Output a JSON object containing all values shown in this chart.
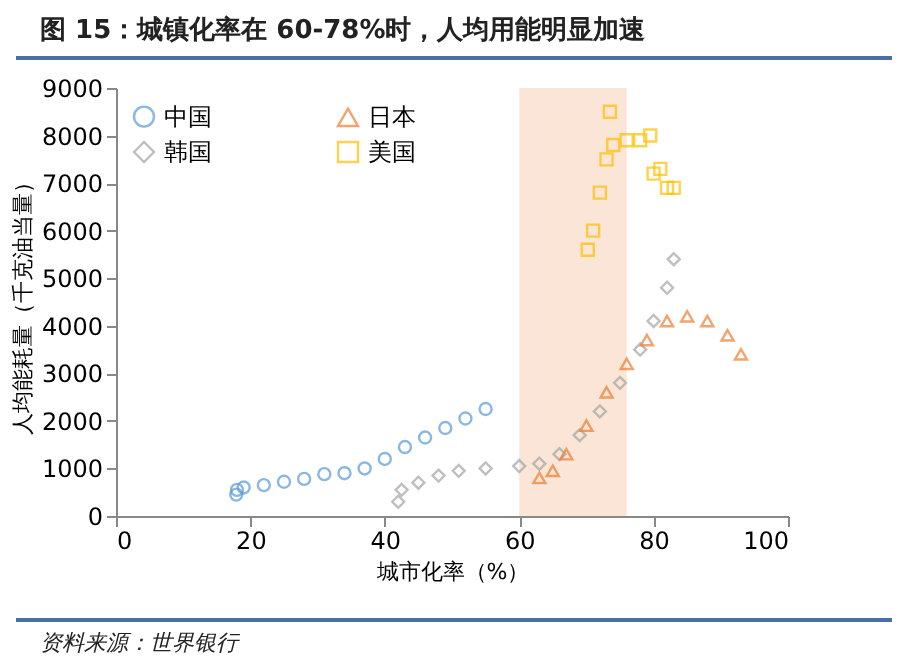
{
  "chart_data": {
    "type": "scatter",
    "title": "图 15：城镇化率在 60-78%时，人均用能明显加速",
    "xlabel": "城市化率（%）",
    "ylabel": "人均能耗量（千克油当量）",
    "annotations": [
      "资料来源：世界银行"
    ],
    "xlim": [
      0,
      100
    ],
    "xticks": [
      0,
      20,
      40,
      60,
      80,
      100
    ],
    "ylim": [
      0,
      9000
    ],
    "yticks": [
      0,
      1000,
      2000,
      3000,
      4000,
      5000,
      6000,
      7000,
      8000,
      9000
    ],
    "grid": false,
    "legend": "top left",
    "bands": [
      {
        "axis": "x",
        "from": 60,
        "to": 76,
        "color": "#fbe5d6"
      }
    ],
    "series": [
      {
        "name": "中国",
        "color": "#5b9bd5",
        "marker": "circle",
        "x": [
          17.9,
          18,
          19,
          22,
          25,
          28,
          31,
          34,
          37,
          40,
          43,
          46,
          49,
          52,
          55
        ],
        "values": [
          450,
          550,
          600,
          650,
          720,
          780,
          880,
          900,
          1000,
          1200,
          1450,
          1650,
          1850,
          2050,
          2250
        ]
      },
      {
        "name": "韩国",
        "color": "#a5a5a5",
        "marker": "diamond",
        "x": [
          42,
          42.5,
          45,
          48,
          51,
          55,
          60,
          63,
          66,
          69,
          72,
          75,
          78,
          80,
          82,
          83
        ],
        "values": [
          300,
          550,
          700,
          850,
          950,
          1000,
          1050,
          1100,
          1300,
          1700,
          2200,
          2800,
          3500,
          4100,
          4800,
          5400
        ]
      },
      {
        "name": "日本",
        "color": "#ed7d31",
        "marker": "triangle",
        "x": [
          63,
          65,
          67,
          70,
          73,
          76,
          79,
          82,
          85,
          88,
          91,
          93
        ],
        "values": [
          800,
          950,
          1300,
          1900,
          2600,
          3200,
          3700,
          4100,
          4200,
          4100,
          3800,
          3400
        ]
      },
      {
        "name": "美国",
        "color": "#ffc000",
        "marker": "square",
        "x": [
          70.2,
          71,
          72,
          73,
          73.5,
          74,
          76,
          78,
          79.5,
          80,
          81,
          82,
          83
        ],
        "values": [
          5600,
          6000,
          6800,
          7500,
          8500,
          7800,
          7900,
          7900,
          8000,
          7200,
          7300,
          6900,
          6900
        ]
      }
    ]
  }
}
